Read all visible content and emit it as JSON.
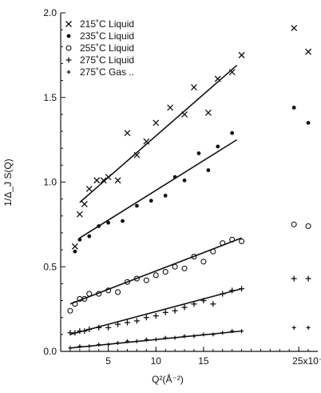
{
  "chart_data": {
    "type": "scatter",
    "title": "",
    "xlabel": "Q²(Å⁻²)",
    "ylabel": "1/Δ_J S(Q)",
    "x_scale_label": "×10⁻³",
    "xlim": [
      0,
      0.027
    ],
    "ylim": [
      0,
      2.0
    ],
    "x_ticks": [
      {
        "value": 0.005,
        "label": "5"
      },
      {
        "value": 0.01,
        "label": "10"
      },
      {
        "value": 0.015,
        "label": "15"
      },
      {
        "value": 0.025,
        "label": "25x10⁻³"
      }
    ],
    "y_ticks": [
      {
        "value": 0.0,
        "label": "0.0"
      },
      {
        "value": 0.5,
        "label": "0.5"
      },
      {
        "value": 1.0,
        "label": "1.0"
      },
      {
        "value": 1.5,
        "label": "1.5"
      },
      {
        "value": 2.0,
        "label": "2.0"
      }
    ],
    "grid": false,
    "legend_position": "top-left",
    "series": [
      {
        "name": "215˚C  Liquid",
        "marker": "x",
        "points": [
          [
            0.0015,
            0.62
          ],
          [
            0.002,
            0.81
          ],
          [
            0.0025,
            0.87
          ],
          [
            0.003,
            0.96
          ],
          [
            0.0038,
            1.01
          ],
          [
            0.0045,
            1.01
          ],
          [
            0.005,
            1.03
          ],
          [
            0.006,
            1.01
          ],
          [
            0.007,
            1.29
          ],
          [
            0.008,
            1.16
          ],
          [
            0.009,
            1.24
          ],
          [
            0.01,
            1.35
          ],
          [
            0.0115,
            1.44
          ],
          [
            0.013,
            1.4
          ],
          [
            0.014,
            1.56
          ],
          [
            0.0155,
            1.41
          ],
          [
            0.0165,
            1.61
          ],
          [
            0.018,
            1.65
          ],
          [
            0.019,
            1.75
          ],
          [
            0.0245,
            1.91
          ],
          [
            0.026,
            1.77
          ]
        ],
        "fit": [
          [
            0.002,
            0.88
          ],
          [
            0.0185,
            1.69
          ]
        ]
      },
      {
        "name": "235˚C  Liquid",
        "marker": "filled-circle",
        "points": [
          [
            0.0015,
            0.59
          ],
          [
            0.002,
            0.66
          ],
          [
            0.003,
            0.68
          ],
          [
            0.004,
            0.74
          ],
          [
            0.005,
            0.76
          ],
          [
            0.0065,
            0.77
          ],
          [
            0.008,
            0.86
          ],
          [
            0.0095,
            0.89
          ],
          [
            0.011,
            0.92
          ],
          [
            0.012,
            1.03
          ],
          [
            0.013,
            1.01
          ],
          [
            0.0145,
            1.17
          ],
          [
            0.0155,
            1.07
          ],
          [
            0.0165,
            1.21
          ],
          [
            0.018,
            1.29
          ],
          [
            0.0245,
            1.44
          ],
          [
            0.026,
            1.35
          ]
        ],
        "fit": [
          [
            0.002,
            0.67
          ],
          [
            0.0185,
            1.25
          ]
        ]
      },
      {
        "name": "255˚C  Liquid",
        "marker": "open-circle",
        "points": [
          [
            0.001,
            0.24
          ],
          [
            0.0015,
            0.28
          ],
          [
            0.002,
            0.31
          ],
          [
            0.0025,
            0.31
          ],
          [
            0.003,
            0.34
          ],
          [
            0.004,
            0.34
          ],
          [
            0.005,
            0.36
          ],
          [
            0.006,
            0.35
          ],
          [
            0.007,
            0.41
          ],
          [
            0.008,
            0.43
          ],
          [
            0.009,
            0.42
          ],
          [
            0.01,
            0.45
          ],
          [
            0.011,
            0.47
          ],
          [
            0.012,
            0.5
          ],
          [
            0.013,
            0.49
          ],
          [
            0.014,
            0.56
          ],
          [
            0.015,
            0.53
          ],
          [
            0.016,
            0.59
          ],
          [
            0.017,
            0.64
          ],
          [
            0.018,
            0.66
          ],
          [
            0.019,
            0.65
          ],
          [
            0.0245,
            0.75
          ],
          [
            0.026,
            0.74
          ]
        ],
        "fit": [
          [
            0.001,
            0.28
          ],
          [
            0.019,
            0.67
          ]
        ]
      },
      {
        "name": "275˚C  Liquid",
        "marker": "plus",
        "points": [
          [
            0.001,
            0.11
          ],
          [
            0.0015,
            0.11
          ],
          [
            0.002,
            0.12
          ],
          [
            0.0025,
            0.12
          ],
          [
            0.003,
            0.13
          ],
          [
            0.004,
            0.14
          ],
          [
            0.005,
            0.14
          ],
          [
            0.006,
            0.16
          ],
          [
            0.007,
            0.17
          ],
          [
            0.008,
            0.18
          ],
          [
            0.009,
            0.2
          ],
          [
            0.01,
            0.21
          ],
          [
            0.011,
            0.23
          ],
          [
            0.012,
            0.24
          ],
          [
            0.013,
            0.26
          ],
          [
            0.014,
            0.28
          ],
          [
            0.015,
            0.3
          ],
          [
            0.016,
            0.28
          ],
          [
            0.017,
            0.34
          ],
          [
            0.018,
            0.36
          ],
          [
            0.019,
            0.37
          ],
          [
            0.0245,
            0.43
          ],
          [
            0.026,
            0.43
          ]
        ],
        "fit": [
          [
            0.001,
            0.1
          ],
          [
            0.019,
            0.37
          ]
        ]
      },
      {
        "name": "275˚C  Gas ..",
        "marker": "small-plus",
        "points": [
          [
            0.001,
            0.02
          ],
          [
            0.002,
            0.03
          ],
          [
            0.003,
            0.03
          ],
          [
            0.004,
            0.04
          ],
          [
            0.005,
            0.04
          ],
          [
            0.006,
            0.05
          ],
          [
            0.007,
            0.06
          ],
          [
            0.008,
            0.06
          ],
          [
            0.009,
            0.07
          ],
          [
            0.01,
            0.07
          ],
          [
            0.011,
            0.08
          ],
          [
            0.012,
            0.08
          ],
          [
            0.013,
            0.09
          ],
          [
            0.014,
            0.09
          ],
          [
            0.015,
            0.1
          ],
          [
            0.016,
            0.1
          ],
          [
            0.017,
            0.11
          ],
          [
            0.018,
            0.12
          ],
          [
            0.019,
            0.12
          ],
          [
            0.0245,
            0.14
          ],
          [
            0.026,
            0.14
          ]
        ],
        "fit": [
          [
            0.001,
            0.02
          ],
          [
            0.019,
            0.12
          ]
        ]
      }
    ]
  }
}
